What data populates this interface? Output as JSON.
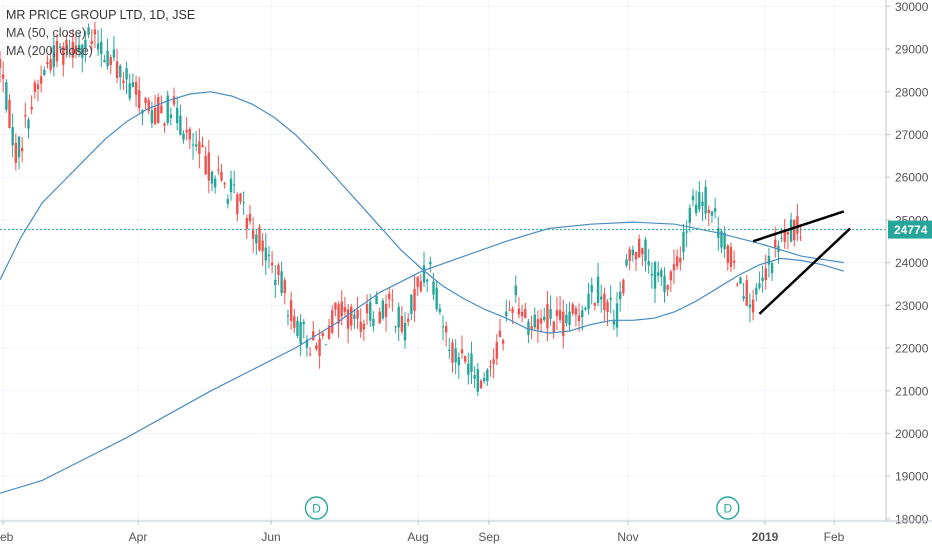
{
  "header": {
    "title": "MR PRICE GROUP LTD, 1D, JSE",
    "indicators": [
      "MA (50, close)",
      "MA (200, close)"
    ]
  },
  "last_price": "24774",
  "dividend_marker": "D",
  "colors": {
    "up": "#26a69a",
    "down": "#ef5350",
    "ma": "#4a8cc2",
    "price_line": "#26a69a",
    "price_tag_bg": "#26a69a",
    "trendline": "#000000",
    "axis_text": "#555555",
    "grid": "#f0f3fa",
    "marker": "#26a69a"
  },
  "chart_data": {
    "type": "candlestick",
    "title": "MR PRICE GROUP LTD, 1D, JSE",
    "y_axis": {
      "ticks": [
        18000,
        19000,
        20000,
        21000,
        22000,
        23000,
        24000,
        25000,
        26000,
        27000,
        28000,
        29000,
        30000
      ],
      "ylim": [
        17950,
        30150
      ],
      "position": "right"
    },
    "x_axis": {
      "labels": [
        "Feb",
        "Apr",
        "Jun",
        "Aug",
        "Sep",
        "Nov",
        "2019",
        "Feb"
      ]
    },
    "grid": true,
    "price_line": 24774,
    "series": [
      {
        "name": "MA (50, close)",
        "points": [
          [
            0,
            23600
          ],
          [
            10,
            24600
          ],
          [
            20,
            25400
          ],
          [
            30,
            25900
          ],
          [
            40,
            26400
          ],
          [
            50,
            26900
          ],
          [
            60,
            27300
          ],
          [
            70,
            27600
          ],
          [
            80,
            27800
          ],
          [
            90,
            27950
          ],
          [
            100,
            28000
          ],
          [
            110,
            27900
          ],
          [
            120,
            27700
          ],
          [
            130,
            27400
          ],
          [
            140,
            27000
          ],
          [
            150,
            26500
          ],
          [
            160,
            25950
          ],
          [
            170,
            25400
          ],
          [
            180,
            24850
          ],
          [
            190,
            24300
          ],
          [
            200,
            23850
          ],
          [
            210,
            23450
          ],
          [
            220,
            23150
          ],
          [
            230,
            22900
          ],
          [
            240,
            22700
          ],
          [
            250,
            22450
          ],
          [
            260,
            22350
          ],
          [
            270,
            22400
          ],
          [
            280,
            22550
          ],
          [
            290,
            22650
          ],
          [
            300,
            22650
          ],
          [
            310,
            22700
          ],
          [
            320,
            22850
          ],
          [
            330,
            23100
          ],
          [
            340,
            23400
          ],
          [
            350,
            23700
          ],
          [
            360,
            23950
          ],
          [
            370,
            24100
          ],
          [
            380,
            24050
          ],
          [
            390,
            23950
          ],
          [
            400,
            23800
          ]
        ]
      },
      {
        "name": "MA (200, close)",
        "points": [
          [
            0,
            18600
          ],
          [
            20,
            18900
          ],
          [
            40,
            19400
          ],
          [
            60,
            19900
          ],
          [
            80,
            20450
          ],
          [
            100,
            21000
          ],
          [
            120,
            21500
          ],
          [
            140,
            22000
          ],
          [
            160,
            22600
          ],
          [
            180,
            23300
          ],
          [
            200,
            23800
          ],
          [
            220,
            24150
          ],
          [
            240,
            24500
          ],
          [
            260,
            24800
          ],
          [
            280,
            24900
          ],
          [
            300,
            24950
          ],
          [
            320,
            24900
          ],
          [
            340,
            24700
          ],
          [
            360,
            24450
          ],
          [
            380,
            24150
          ],
          [
            400,
            24000
          ]
        ]
      }
    ],
    "annotations": [
      {
        "type": "trendline",
        "from": [
          357,
          24500
        ],
        "to": [
          400,
          25200
        ]
      },
      {
        "type": "trendline",
        "from": [
          360,
          22800
        ],
        "to": [
          403,
          24800
        ]
      },
      {
        "type": "dividend",
        "label": "D",
        "x": 150
      },
      {
        "type": "dividend",
        "label": "D",
        "x": 345
      }
    ]
  }
}
